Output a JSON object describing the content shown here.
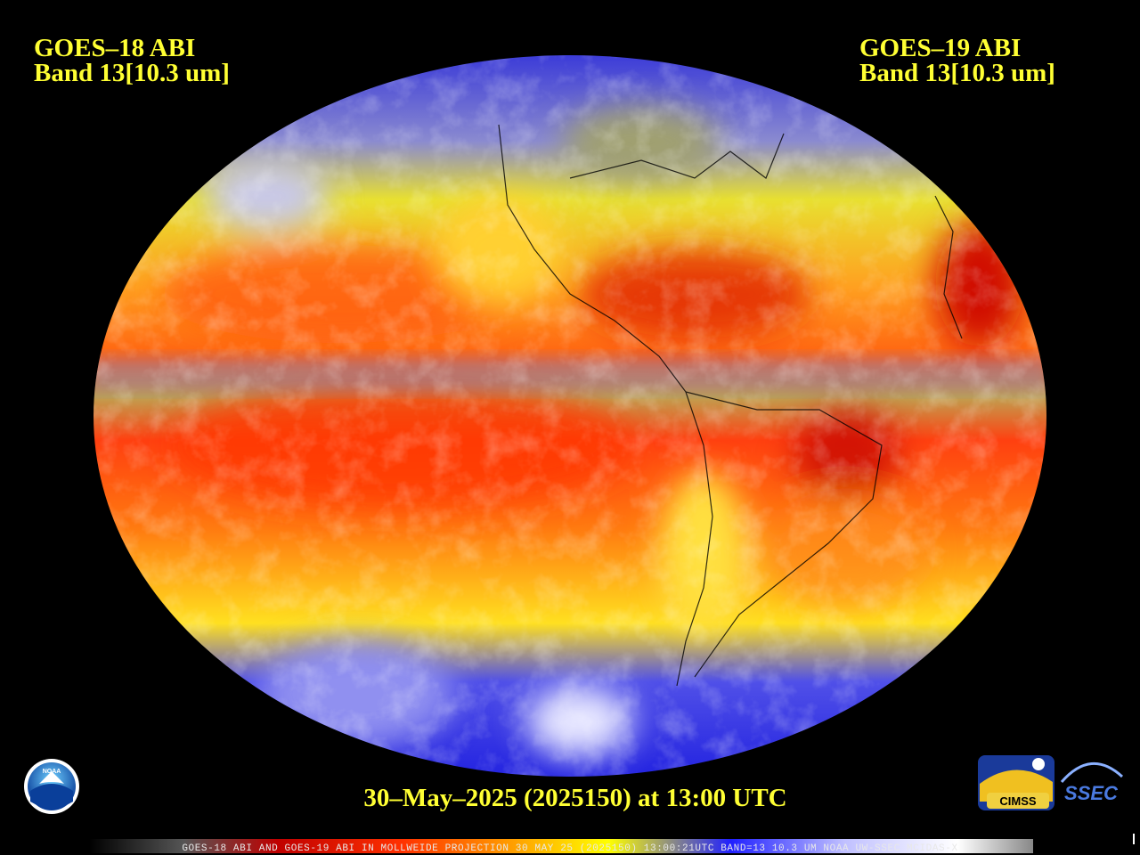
{
  "header": {
    "left": {
      "line1": "GOES–18 ABI",
      "line2": "Band 13[10.3 um]"
    },
    "right": {
      "line1": "GOES–19 ABI",
      "line2": "Band 13[10.3 um]"
    }
  },
  "caption": "30–May–2025 (2025150) at 13:00 UTC",
  "footer": "GOES-18 ABI AND GOES-19 ABI IN MOLLWEIDE PROJECTION 30 MAY 25 (2025150) 13:00:21UTC BAND=13 10.3 UM NOAA UW-SSEC MCIDAS-X",
  "logos": {
    "noaa": "NOAA",
    "cimss": "CIMSS",
    "ssec": "SSEC"
  }
}
